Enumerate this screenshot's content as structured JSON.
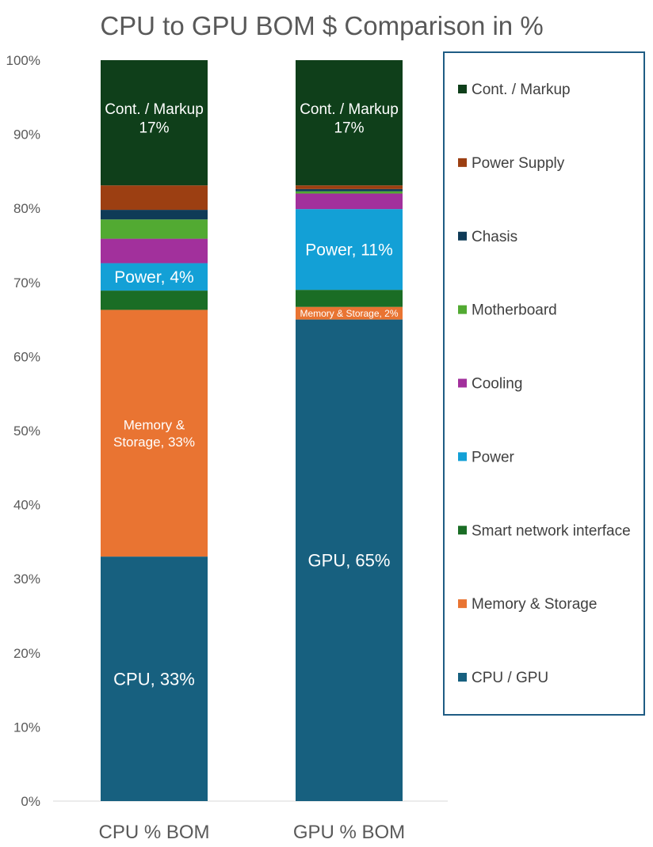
{
  "chart_data": {
    "type": "bar",
    "stacked": true,
    "title": "CPU to GPU BOM $ Comparison in %",
    "categories": [
      "CPU % BOM",
      "GPU % BOM"
    ],
    "y_ticks": [
      "0%",
      "10%",
      "20%",
      "30%",
      "40%",
      "50%",
      "60%",
      "70%",
      "80%",
      "90%",
      "100%"
    ],
    "ylim": [
      0,
      100
    ],
    "grid": false,
    "legend_position": "right",
    "series": [
      {
        "name": "CPU / GPU",
        "color": "#17607F",
        "values": [
          33.0,
          65.0
        ],
        "labels": [
          [
            "CPU, 33%"
          ],
          [
            "GPU, 65%"
          ]
        ],
        "label_size": [
          22,
          22
        ]
      },
      {
        "name": "Memory & Storage",
        "color": "#E97432",
        "values": [
          33.3,
          1.7
        ],
        "labels": [
          [
            "Memory &",
            "Storage, 33%"
          ],
          [
            "Memory & Storage, 2%"
          ]
        ],
        "label_size": [
          17,
          12
        ]
      },
      {
        "name": "Smart network interface",
        "color": "#1A6D25",
        "values": [
          2.6,
          2.3
        ],
        "labels": [
          [],
          []
        ],
        "label_size": [
          0,
          0
        ]
      },
      {
        "name": "Power",
        "color": "#13A0D6",
        "values": [
          3.7,
          10.9
        ],
        "labels": [
          [
            "Power, 4%"
          ],
          [
            "Power, 11%"
          ]
        ],
        "label_size": [
          21,
          21
        ]
      },
      {
        "name": "Cooling",
        "color": "#A2309C",
        "values": [
          3.3,
          2.1
        ],
        "labels": [
          [],
          []
        ],
        "label_size": [
          0,
          0
        ]
      },
      {
        "name": "Motherboard",
        "color": "#52AA32",
        "values": [
          2.6,
          0.3
        ],
        "labels": [
          [],
          []
        ],
        "label_size": [
          0,
          0
        ]
      },
      {
        "name": "Chasis",
        "color": "#0F3B57",
        "values": [
          1.3,
          0.3
        ],
        "labels": [
          [],
          []
        ],
        "label_size": [
          0,
          0
        ]
      },
      {
        "name": "Power Supply",
        "color": "#9C3F12",
        "values": [
          3.3,
          0.5
        ],
        "labels": [
          [],
          []
        ],
        "label_size": [
          0,
          0
        ]
      },
      {
        "name": "Cont. / Markup",
        "color": "#0F3F1A",
        "values": [
          16.9,
          16.9
        ],
        "labels": [
          [
            "Cont. / Markup",
            "17%"
          ],
          [
            "Cont. / Markup",
            "17%"
          ]
        ],
        "label_size": [
          19,
          19
        ]
      }
    ]
  },
  "colors": {
    "axis_text": "#595959",
    "legend_border": "#1F5C84",
    "axis_line": "#D9D9D9"
  }
}
